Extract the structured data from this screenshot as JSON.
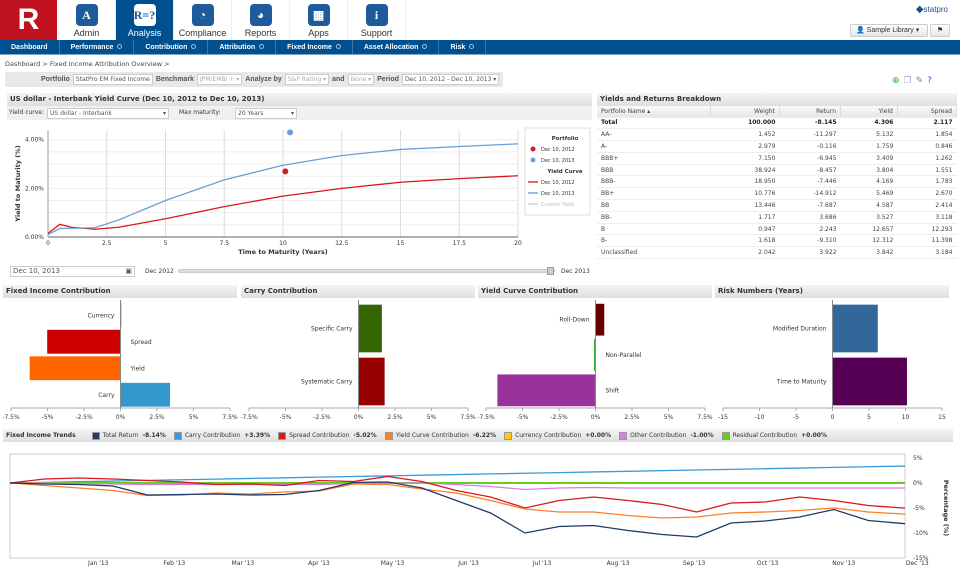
{
  "header": {
    "logo": "R",
    "tabs": [
      {
        "label": "Admin",
        "icon": "briefcase-icon",
        "glyph": "A"
      },
      {
        "label": "Analysis",
        "icon": "formula-icon",
        "glyph": "R=?",
        "active": true
      },
      {
        "label": "Compliance",
        "icon": "magnifier-chart-icon",
        "glyph": "◔"
      },
      {
        "label": "Reports",
        "icon": "report-icon",
        "glyph": "◕"
      },
      {
        "label": "Apps",
        "icon": "basket-icon",
        "glyph": "▦"
      },
      {
        "label": "Support",
        "icon": "info-icon",
        "glyph": "i"
      }
    ],
    "brand": "statpro",
    "library": "Sample Library"
  },
  "nav": [
    "Dashboard",
    "Performance",
    "Contribution",
    "Attribution",
    "Fixed Income",
    "Asset Allocation",
    "Risk"
  ],
  "breadcrumb": [
    "Dashboard",
    "> Fixed Income Attribution Overview",
    "> "
  ],
  "toolbar": {
    "portfolio_label": "Portfolio",
    "portfolio": "StatPro EM Fixed Income",
    "benchmark_label": "Benchmark",
    "benchmark": "JPM/EMBI +",
    "analyze_label": "Analyze by",
    "analyze": "S&P Rating",
    "and_label": "and",
    "and": "None",
    "period_label": "Period",
    "period": "Dec 10, 2012 - Dec 10, 2013"
  },
  "yield_panel": {
    "title": "US dollar - Interbank Yield Curve (Dec 10, 2012 to Dec 10, 2013)",
    "curve_label": "Yield curve:",
    "curve": "US dollar - Interbank",
    "maturity_label": "Max maturity:",
    "maturity": "20 Years",
    "date": "Dec 10, 2013",
    "slider_start": "Dec 2012",
    "slider_end": "Dec 2013",
    "slider_value": 1.0
  },
  "colors": {
    "red": "#d7191c",
    "blue": "#6a9fd8",
    "nav": "#00508f"
  },
  "table": {
    "title": "Yields and Returns Breakdown",
    "columns": [
      "Portfolio Name",
      "Weight",
      "Return",
      "Yield",
      "Spread"
    ],
    "rows": [
      [
        "Total",
        "100.000",
        "-8.145",
        "4.306",
        "2.117"
      ],
      [
        "AA-",
        "1.452",
        "-11.297",
        "5.132",
        "1.854"
      ],
      [
        "A-",
        "2.979",
        "-0.116",
        "1.759",
        "0.846"
      ],
      [
        "BBB+",
        "7.150",
        "-6.945",
        "3.409",
        "1.262"
      ],
      [
        "BBB",
        "38.924",
        "-8.457",
        "3.804",
        "1.551"
      ],
      [
        "BBB-",
        "18.950",
        "-7.446",
        "4.169",
        "1.783"
      ],
      [
        "BB+",
        "10.776",
        "-14.912",
        "5.469",
        "2.670"
      ],
      [
        "BB",
        "13.446",
        "-7.687",
        "4.587",
        "2.414"
      ],
      [
        "BB-",
        "1.717",
        "3.686",
        "3.527",
        "3.118"
      ],
      [
        "B",
        "0.947",
        "2.243",
        "12.657",
        "12.293"
      ],
      [
        "B-",
        "1.618",
        "-9.310",
        "12.312",
        "11.398"
      ],
      [
        "Unclassified",
        "2.042",
        "3.922",
        "3.842",
        "3.184"
      ]
    ]
  },
  "trends_legend": {
    "title": "Fixed Income Trends",
    "items": [
      {
        "label": "Total Return",
        "value": "-8.14%",
        "color": "#1f3a68"
      },
      {
        "label": "Carry Contribution",
        "value": "+3.39%",
        "color": "#3a9ad9"
      },
      {
        "label": "Spread Contribution",
        "value": "-5.02%",
        "color": "#d7191c"
      },
      {
        "label": "Yield Curve Contribution",
        "value": "-6.22%",
        "color": "#ff7f27"
      },
      {
        "label": "Currency Contribution",
        "value": "+0.00%",
        "color": "#ffcc00"
      },
      {
        "label": "Other Contribution",
        "value": "-1.00%",
        "color": "#d67fe0"
      },
      {
        "label": "Residual Contribution",
        "value": "+0.00%",
        "color": "#66cc22"
      }
    ]
  },
  "chart_data": [
    {
      "id": "yield-curve",
      "type": "line",
      "xlabel": "Time to Maturity (Years)",
      "ylabel": "Yield to Maturity (%)",
      "xlim": [
        0,
        20
      ],
      "ylim": [
        0,
        4.4
      ],
      "xticks": [
        "0",
        "2.5",
        "5",
        "7.5",
        "10",
        "12.5",
        "15",
        "17.5",
        "20"
      ],
      "yticks": [
        "0.00%",
        "2.00%",
        "4.00%"
      ],
      "grid": true,
      "legend": "right",
      "legend_groups": [
        {
          "title": "Portfolio",
          "entries": [
            "Dec 10, 2012",
            "Dec 10, 2013"
          ]
        },
        {
          "title": "Yield Curve",
          "entries": [
            "Dec 10, 2012",
            "Dec 10, 2013",
            "Custom Yield"
          ]
        }
      ],
      "x": [
        0,
        0.5,
        1,
        2,
        3,
        5,
        7.5,
        10,
        12.5,
        15,
        17.5,
        20
      ],
      "series": [
        {
          "name": "Dec 10, 2012",
          "color": "#d7191c",
          "values": [
            0.15,
            0.52,
            0.4,
            0.32,
            0.4,
            0.75,
            1.25,
            1.68,
            2.0,
            2.25,
            2.4,
            2.52
          ]
        },
        {
          "name": "Dec 10, 2013",
          "color": "#6a9fd8",
          "values": [
            0.1,
            0.35,
            0.36,
            0.38,
            0.7,
            1.5,
            2.35,
            2.95,
            3.35,
            3.6,
            3.72,
            3.83
          ]
        }
      ],
      "points": [
        {
          "name": "Dec 10, 2012",
          "x": 10.1,
          "y": 2.7,
          "color": "#d7191c"
        },
        {
          "name": "Dec 10, 2013",
          "x": 10.3,
          "y": 4.3,
          "color": "#6a9fd8"
        }
      ]
    },
    {
      "id": "fi-contribution",
      "title": "Fixed Income Contribution",
      "type": "bar",
      "orientation": "horizontal",
      "xlim": [
        -7.5,
        7.5
      ],
      "ticks": [
        "-7.5%",
        "-5%",
        "-2.5%",
        "0%",
        "2.5%",
        "5%",
        "7.5%"
      ],
      "categories": [
        "Currency",
        "Spread",
        "Yield",
        "Carry"
      ],
      "values": [
        0.0,
        -5.02,
        -6.22,
        3.39
      ],
      "colors": [
        "#c8a000",
        "#cc0000",
        "#ff6600",
        "#3399cc"
      ]
    },
    {
      "id": "carry-contribution",
      "title": "Carry Contribution",
      "type": "bar",
      "orientation": "horizontal",
      "xlim": [
        -7.5,
        7.5
      ],
      "ticks": [
        "-7.5%",
        "-5%",
        "-2.5%",
        "0%",
        "2.5%",
        "5%",
        "7.5%"
      ],
      "categories": [
        "Specific Carry",
        "Systematic Carry"
      ],
      "values": [
        1.6,
        1.79
      ],
      "colors": [
        "#336600",
        "#990000"
      ]
    },
    {
      "id": "yield-curve-contribution",
      "title": "Yield Curve Contribution",
      "type": "bar",
      "orientation": "horizontal",
      "xlim": [
        -7.5,
        7.5
      ],
      "ticks": [
        "-7.5%",
        "-5%",
        "-2.5%",
        "0%",
        "2.5%",
        "5%",
        "7.5%"
      ],
      "categories": [
        "Roll-Down",
        "Non-Parallel",
        "Shift"
      ],
      "values": [
        0.6,
        -0.1,
        -6.72
      ],
      "colors": [
        "#660000",
        "#33aa33",
        "#993399"
      ]
    },
    {
      "id": "risk-numbers",
      "title": "Risk Numbers (Years)",
      "type": "bar",
      "orientation": "horizontal",
      "xlim": [
        -15,
        15
      ],
      "ticks": [
        "-15",
        "-10",
        "-5",
        "0",
        "5",
        "10",
        "15"
      ],
      "categories": [
        "Modified Duration",
        "Time to Maturity"
      ],
      "values": [
        6.2,
        10.2
      ],
      "colors": [
        "#336699",
        "#550055"
      ]
    },
    {
      "id": "fixed-income-trends",
      "type": "line",
      "ylabel": "Percentage (%)",
      "ylim": [
        -15,
        5
      ],
      "yticks": [
        "5%",
        "0%",
        "-5%",
        "-10%",
        "-15%"
      ],
      "xticks": [
        "Jan '13",
        "Feb '13",
        "Mar '13",
        "Apr '13",
        "May '13",
        "Jun '13",
        "Jul '13",
        "Aug '13",
        "Sep '13",
        "Oct '13",
        "Nov '13",
        "Dec '13"
      ],
      "x": [
        "2012-12-10",
        "2012-12-24",
        "2013-01-07",
        "2013-01-21",
        "2013-02-04",
        "2013-02-18",
        "2013-03-04",
        "2013-03-18",
        "2013-04-01",
        "2013-04-15",
        "2013-04-29",
        "2013-05-13",
        "2013-05-27",
        "2013-06-10",
        "2013-06-24",
        "2013-07-08",
        "2013-07-22",
        "2013-08-05",
        "2013-08-19",
        "2013-09-02",
        "2013-09-16",
        "2013-09-30",
        "2013-10-14",
        "2013-10-28",
        "2013-11-11",
        "2013-11-25",
        "2013-12-10"
      ],
      "series": [
        {
          "name": "Carry Contribution",
          "color": "#3a9ad9",
          "values": [
            0,
            0.13,
            0.26,
            0.39,
            0.52,
            0.65,
            0.78,
            0.91,
            1.04,
            1.17,
            1.3,
            1.43,
            1.56,
            1.69,
            1.82,
            1.95,
            2.08,
            2.21,
            2.34,
            2.47,
            2.6,
            2.73,
            2.86,
            2.99,
            3.12,
            3.25,
            3.39
          ]
        },
        {
          "name": "Currency Contribution",
          "color": "#ffcc00",
          "values": [
            0,
            0,
            0,
            0,
            0,
            0,
            0,
            0,
            0,
            0,
            0,
            0,
            0,
            0,
            0,
            0,
            0,
            0,
            0,
            0,
            0,
            0,
            0,
            0,
            0,
            0,
            0
          ]
        },
        {
          "name": "Residual Contribution",
          "color": "#66cc22",
          "values": [
            0,
            0,
            0,
            0,
            0,
            0,
            0,
            0,
            0,
            0,
            0,
            0,
            0,
            0,
            0,
            0,
            0,
            0,
            0,
            0,
            0,
            0,
            0,
            0,
            0,
            0,
            0
          ]
        },
        {
          "name": "Other Contribution",
          "color": "#d67fe0",
          "values": [
            0,
            0,
            -0.1,
            -0.2,
            -0.3,
            -0.3,
            -0.3,
            -0.3,
            -0.3,
            -0.3,
            -0.1,
            0,
            0,
            -0.3,
            -0.7,
            -1.3,
            -1.0,
            -0.9,
            -1.0,
            -1.0,
            -1.0,
            -1.0,
            -1.0,
            -1.0,
            -1.0,
            -1.0,
            -1.0
          ]
        },
        {
          "name": "Spread Contribution",
          "color": "#d7191c",
          "values": [
            0,
            0.8,
            1.0,
            0.8,
            0.5,
            0.2,
            -0.3,
            -0.2,
            -0.5,
            0.5,
            0.3,
            1.3,
            0.3,
            -1.5,
            -2.8,
            -5.0,
            -3.5,
            -2.8,
            -3.5,
            -4.3,
            -5.8,
            -4.0,
            -3.8,
            -2.8,
            -3.5,
            -4.5,
            -5.02
          ]
        },
        {
          "name": "Yield Curve Contribution",
          "color": "#ff7f27",
          "values": [
            0,
            -0.5,
            -1.0,
            -1.5,
            -2.5,
            -2.4,
            -2.0,
            -2.2,
            -1.8,
            -1.6,
            -0.2,
            -0.3,
            -1.2,
            -2.0,
            -3.5,
            -5.2,
            -5.8,
            -5.8,
            -6.5,
            -7.0,
            -6.8,
            -6.0,
            -5.8,
            -5.5,
            -5.0,
            -5.8,
            -6.22
          ]
        },
        {
          "name": "Total Return",
          "color": "#1f3a68",
          "values": [
            0,
            -0.2,
            -0.3,
            -0.6,
            -2.4,
            -2.3,
            -2.2,
            -2.4,
            -2.3,
            -1.5,
            0.1,
            0.2,
            -1.0,
            -3.5,
            -6.0,
            -10.0,
            -8.7,
            -8.5,
            -9.5,
            -10.3,
            -10.8,
            -8.0,
            -7.6,
            -6.8,
            -5.3,
            -7.5,
            -8.14
          ]
        }
      ]
    }
  ]
}
